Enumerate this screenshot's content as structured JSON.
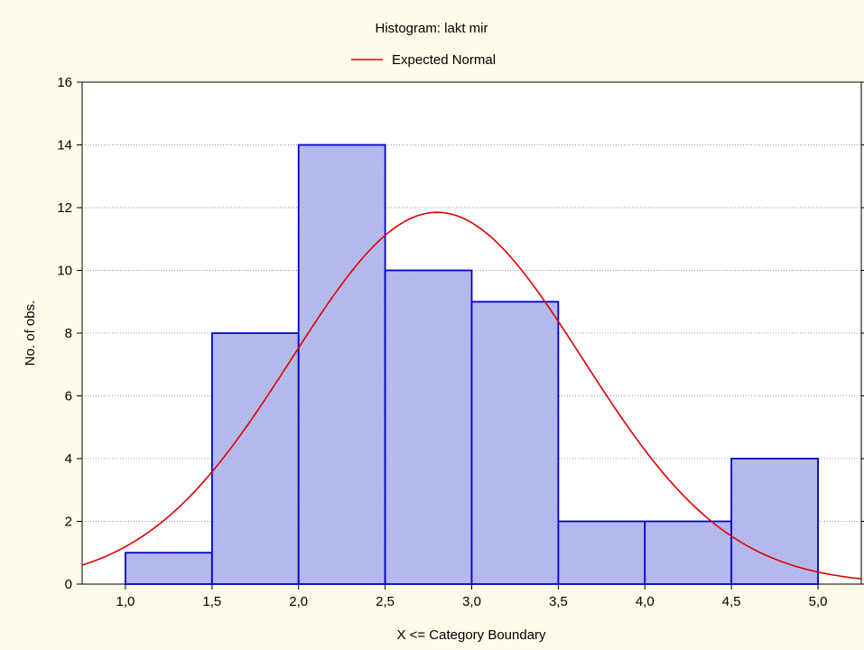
{
  "chart_data": {
    "type": "bar",
    "title": "Histogram: lakt mir",
    "xlabel": "X <= Category Boundary",
    "ylabel": "No. of obs.",
    "x_ticks": [
      "1,0",
      "1,5",
      "2,0",
      "2,5",
      "3,0",
      "3,5",
      "4,0",
      "4,5",
      "5,0"
    ],
    "y_ticks": [
      "0",
      "2",
      "4",
      "6",
      "8",
      "10",
      "12",
      "14",
      "16"
    ],
    "xlim": [
      0.75,
      5.25
    ],
    "ylim": [
      0,
      16
    ],
    "bins": [
      {
        "from": 1.0,
        "to": 1.5,
        "value": 1
      },
      {
        "from": 1.5,
        "to": 2.0,
        "value": 8
      },
      {
        "from": 2.0,
        "to": 2.5,
        "value": 14
      },
      {
        "from": 2.5,
        "to": 3.0,
        "value": 10
      },
      {
        "from": 3.0,
        "to": 3.5,
        "value": 9
      },
      {
        "from": 3.5,
        "to": 4.0,
        "value": 2
      },
      {
        "from": 4.0,
        "to": 4.5,
        "value": 2
      },
      {
        "from": 4.5,
        "to": 5.0,
        "value": 4
      }
    ],
    "expected_normal": {
      "label": "Expected Normal",
      "mean": 2.8,
      "sd": 0.84,
      "peak": 11.85,
      "color": "#e00000"
    },
    "legend_position": "top-center",
    "grid": "horizontal dotted",
    "colors": {
      "bar_fill": "#b4b9ec",
      "bar_stroke": "#0000d0",
      "background": "#fdfbe9",
      "plot_background": "#ffffff"
    }
  }
}
